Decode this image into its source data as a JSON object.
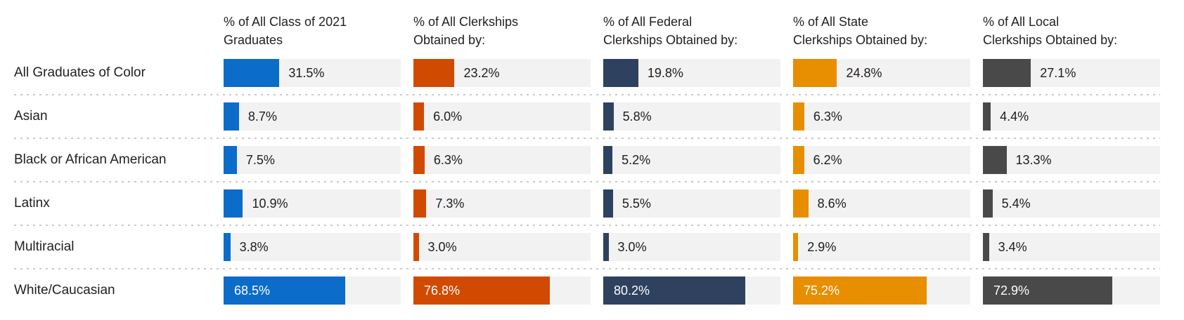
{
  "chart_data": {
    "type": "bar",
    "orientation": "horizontal",
    "unit": "%",
    "xlim": [
      0,
      100
    ],
    "grid": false,
    "legend_position": "none",
    "track_color": "#f2f2f2",
    "separator_color": "#c9c9c9",
    "columns": [
      {
        "header": "% of All Class of 2021\nGraduates",
        "color": "#0c6cc9"
      },
      {
        "header": "% of All Clerkships\nObtained by:",
        "color": "#d14a02"
      },
      {
        "header": "% of All Federal\nClerkships Obtained by:",
        "color": "#2e415f"
      },
      {
        "header": "% of All State\nClerkships Obtained by:",
        "color": "#e78f00"
      },
      {
        "header": "% of All Local\nClerkships Obtained by:",
        "color": "#494949"
      }
    ],
    "categories": [
      "All Graduates of Color",
      "Asian",
      "Black or African American",
      "Latinx",
      "Multiracial",
      "White/Caucasian"
    ],
    "rows": [
      {
        "label": "All Graduates of Color",
        "values": [
          31.5,
          23.2,
          19.8,
          24.8,
          27.1
        ],
        "display": [
          "31.5%",
          "23.2%",
          "19.8%",
          "24.8%",
          "27.1%"
        ]
      },
      {
        "label": "Asian",
        "values": [
          8.7,
          6.0,
          5.8,
          6.3,
          4.4
        ],
        "display": [
          "8.7%",
          "6.0%",
          "5.8%",
          "6.3%",
          "4.4%"
        ]
      },
      {
        "label": "Black or African American",
        "values": [
          7.5,
          6.3,
          5.2,
          6.2,
          13.3
        ],
        "display": [
          "7.5%",
          "6.3%",
          "5.2%",
          "6.2%",
          "13.3%"
        ]
      },
      {
        "label": "Latinx",
        "values": [
          10.9,
          7.3,
          5.5,
          8.6,
          5.4
        ],
        "display": [
          "10.9%",
          "7.3%",
          "5.5%",
          "8.6%",
          "5.4%"
        ]
      },
      {
        "label": "Multiracial",
        "values": [
          3.8,
          3.0,
          3.0,
          2.9,
          3.4
        ],
        "display": [
          "3.8%",
          "3.0%",
          "3.0%",
          "2.9%",
          "3.4%"
        ]
      },
      {
        "label": "White/Caucasian",
        "values": [
          68.5,
          76.8,
          80.2,
          75.2,
          72.9
        ],
        "display": [
          "68.5%",
          "76.8%",
          "80.2%",
          "75.2%",
          "72.9%"
        ]
      }
    ]
  }
}
